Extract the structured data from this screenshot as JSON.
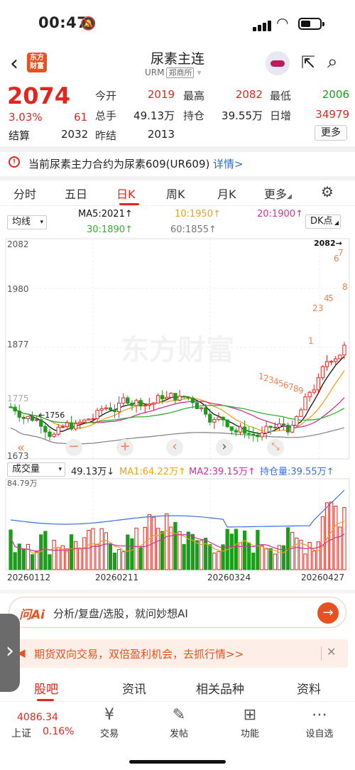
{
  "status": {
    "time": "00:47",
    "bell": "🔕"
  },
  "nav": {
    "back": "‹",
    "logo": "东方财富",
    "title": "尿素主连",
    "code": "URM",
    "exchange": "郑商所"
  },
  "quote": {
    "price": "2074",
    "pct": "3.03%",
    "change": "61",
    "settle_label": "结算",
    "settle_value": "2032",
    "prev_label": "昨结",
    "prev_value": "2013",
    "open_label": "今开",
    "open_value": "2019",
    "high_label": "最高",
    "high_value": "2082",
    "low_label": "最低",
    "low_value": "2006",
    "vol_label": "总手",
    "vol_value": "49.13万",
    "oi_label": "持仓",
    "oi_value": "39.55万",
    "oi_chg_label": "日增",
    "oi_chg_value": "34979",
    "more_label": "更多"
  },
  "notice": {
    "text": "当前尿素主力合约为尿素609(UR609)",
    "link": "详情>"
  },
  "tabs": [
    "分时",
    "五日",
    "日K",
    "周K",
    "月K",
    "更多"
  ],
  "ma": {
    "indicator": "均线",
    "ma5": "MA5:2021↑",
    "ma10": "10:1950↑",
    "ma20": "20:1900↑",
    "ma30": "30:1890↑",
    "ma60": "60:1855↑",
    "dk": "DK点"
  },
  "colors": {
    "up": "#e0271f",
    "down": "#1a9e1a",
    "ma5": "#111111",
    "ma10": "#f0a020",
    "ma20": "#d0309a",
    "ma30": "#30b030",
    "ma60": "#888888",
    "oi": "#3a6fd8"
  },
  "chart_labels": {
    "y_top": "2082",
    "y_mid1": "1980",
    "y_mid2": "1877",
    "y_low": "1775",
    "y_bottom": "1673",
    "high_mark": "2082→",
    "low_mark": "←1756",
    "watermark": "东方财富",
    "dk_nums_a": [
      "1",
      "2",
      "3",
      "4",
      "5",
      "6",
      "7",
      "8"
    ],
    "dk_nums_b": [
      "1",
      "2",
      "3",
      "4",
      "5",
      "6",
      "7",
      "8",
      "9"
    ]
  },
  "controls": [
    "«",
    "−",
    "+",
    "‹",
    "›",
    "⤡"
  ],
  "vol": {
    "indicator": "成交量",
    "value": "49.13万↓",
    "ma1": "MA1:64.22万↑",
    "ma2": "MA2:39.15万↑",
    "oi": "持仓量:39.55万↑",
    "y_top": "84.79万",
    "dates": [
      "20260112",
      "20260211",
      "20260324",
      "20260427"
    ]
  },
  "ai": {
    "logo": "问Ai",
    "text": "分析/复盘/选股，就问妙想AI",
    "go": "→"
  },
  "promo": {
    "text": "期货双向交易，双倍盈利机会，去抓行情>>",
    "close": "✕"
  },
  "bottom_tabs": [
    "股吧",
    "资讯",
    "相关品种",
    "资料"
  ],
  "dock": {
    "index_value": "4086.34",
    "index_label": "上证",
    "index_pct": "0.16%",
    "items": [
      {
        "icon": "¥",
        "label": "交易"
      },
      {
        "icon": "✎",
        "label": "发帖"
      },
      {
        "icon": "⊞",
        "label": "功能"
      },
      {
        "icon": "⋯",
        "label": "设自选"
      }
    ]
  }
}
